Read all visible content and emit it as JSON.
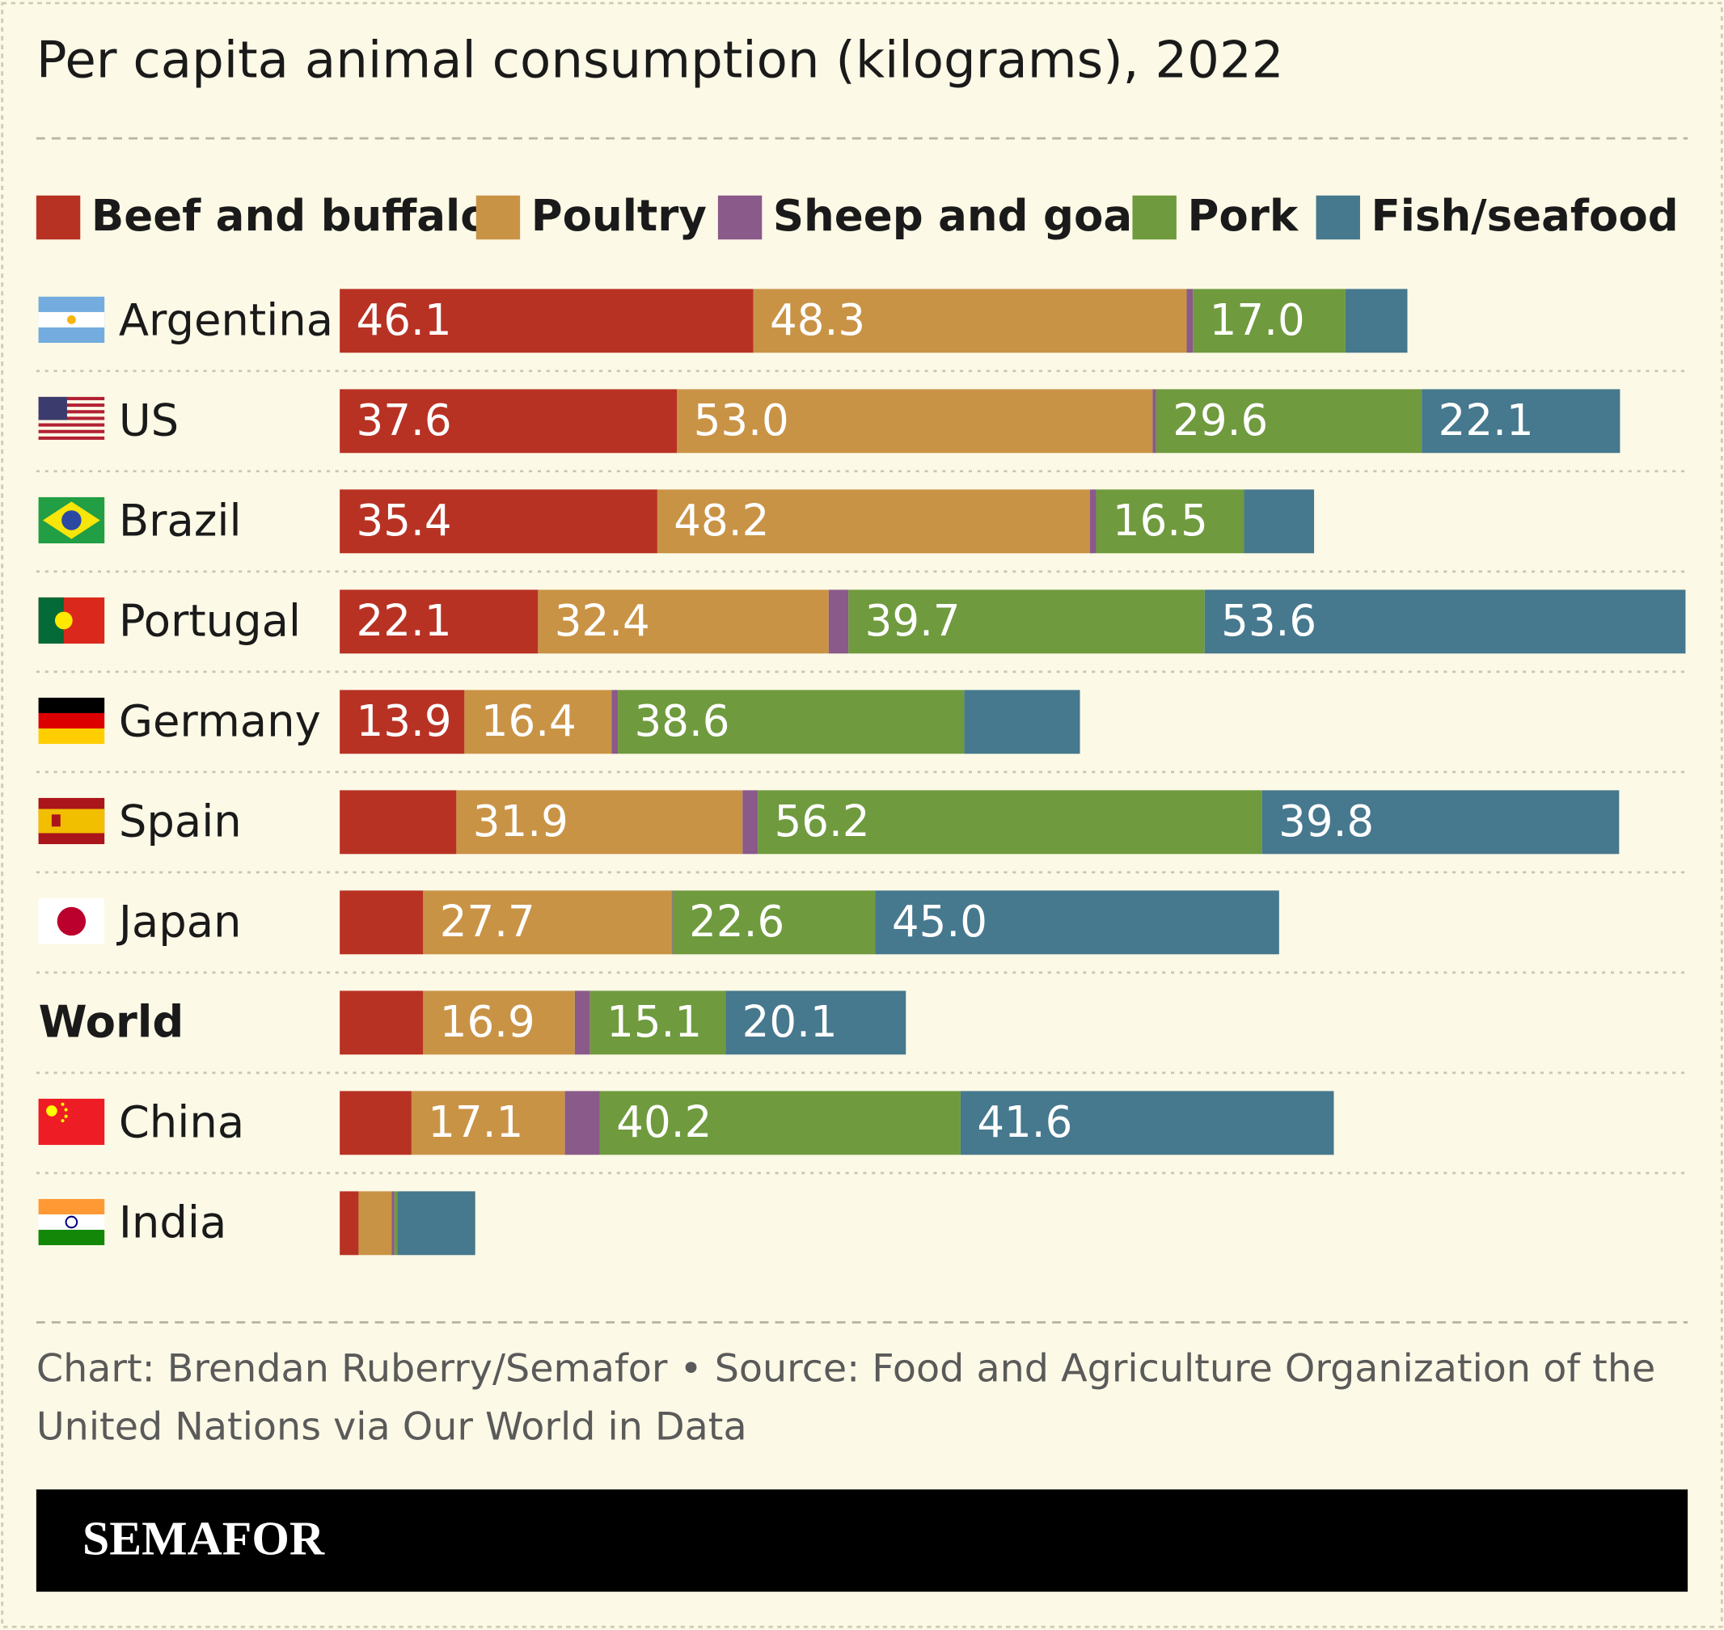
{
  "chart_data": {
    "type": "stacked-bar",
    "orientation": "horizontal",
    "title": "Per capita animal consumption (kilograms), 2022",
    "categories": [
      "Argentina",
      "US",
      "Brazil",
      "Portugal",
      "Germany",
      "Spain",
      "Japan",
      "World",
      "China",
      "India"
    ],
    "xlim": [
      0,
      150
    ],
    "series": [
      {
        "name": "Beef and buffalo",
        "color": "#b83224",
        "values": [
          46.1,
          37.6,
          35.4,
          22.1,
          13.9,
          13.0,
          9.3,
          9.3,
          8.0,
          2.1
        ],
        "value_labels": [
          "46.1",
          "37.6",
          "35.4",
          "22.1",
          "13.9",
          null,
          null,
          null,
          null,
          null
        ]
      },
      {
        "name": "Poultry",
        "color": "#c99346",
        "values": [
          48.3,
          53.0,
          48.2,
          32.4,
          16.4,
          31.9,
          27.7,
          16.9,
          17.1,
          3.7
        ],
        "value_labels": [
          "48.3",
          "53.0",
          "48.2",
          "32.4",
          "16.4",
          "31.9",
          "27.7",
          "16.9",
          "17.1",
          null
        ]
      },
      {
        "name": "Sheep and goat",
        "color": "#8a5a8a",
        "values": [
          0.7,
          0.4,
          0.7,
          2.2,
          0.7,
          1.7,
          0.1,
          1.7,
          3.9,
          0.3
        ],
        "value_labels": [
          null,
          null,
          null,
          null,
          null,
          null,
          null,
          null,
          null,
          null
        ]
      },
      {
        "name": "Pork",
        "color": "#6f9a3e",
        "values": [
          17.0,
          29.6,
          16.5,
          39.7,
          38.6,
          56.2,
          22.6,
          15.1,
          40.2,
          0.3
        ],
        "value_labels": [
          "17.0",
          "29.6",
          "16.5",
          "39.7",
          "38.6",
          "56.2",
          "22.6",
          "15.1",
          "40.2",
          null
        ]
      },
      {
        "name": "Fish/seafood",
        "color": "#46788e",
        "values": [
          6.9,
          22.1,
          7.8,
          53.6,
          12.9,
          39.8,
          45.0,
          20.1,
          41.6,
          8.7
        ],
        "value_labels": [
          null,
          "22.1",
          null,
          "53.6",
          null,
          "39.8",
          "45.0",
          "20.1",
          "41.6",
          null
        ]
      }
    ],
    "source": [
      "Chart: Brendan Ruberry/Semafor • Source: Food and Agriculture Organization of the",
      "United Nations via Our World in Data"
    ],
    "brand": "SEMAFOR"
  }
}
